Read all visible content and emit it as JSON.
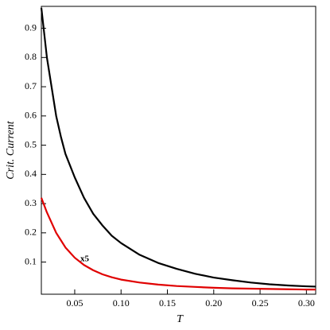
{
  "chart_data": {
    "type": "line",
    "x_label": "T",
    "y_label": "Crit. Current",
    "annotation": "x5",
    "x": [
      0.014,
      0.02,
      0.025,
      0.03,
      0.035,
      0.04,
      0.05,
      0.06,
      0.07,
      0.08,
      0.09,
      0.1,
      0.12,
      0.14,
      0.16,
      0.18,
      0.2,
      0.22,
      0.24,
      0.26,
      0.28,
      0.3,
      0.31
    ],
    "series": [
      {
        "color": "#000000",
        "values": [
          0.97,
          0.8,
          0.7,
          0.6,
          0.53,
          0.47,
          0.39,
          0.32,
          0.265,
          0.225,
          0.19,
          0.165,
          0.125,
          0.097,
          0.077,
          0.06,
          0.047,
          0.038,
          0.03,
          0.024,
          0.02,
          0.017,
          0.016
        ]
      },
      {
        "color": "#e00000",
        "values": [
          0.32,
          0.27,
          0.235,
          0.2,
          0.175,
          0.15,
          0.115,
          0.09,
          0.072,
          0.058,
          0.048,
          0.04,
          0.03,
          0.023,
          0.018,
          0.015,
          0.012,
          0.01,
          0.009,
          0.008,
          0.007,
          0.006,
          0.006
        ]
      }
    ],
    "xlim": [
      0.014,
      0.31
    ],
    "ylim": [
      -0.01,
      0.975
    ],
    "xticks": [
      0.05,
      {
        "value": 0.1,
        "label": "0.10"
      },
      0.15,
      {
        "value": 0.2,
        "label": "0.20"
      },
      0.25,
      {
        "value": 0.3,
        "label": "0.30"
      }
    ],
    "yticks": [
      0.1,
      0.2,
      0.3,
      0.4,
      0.5,
      0.6,
      0.7,
      0.8,
      0.9
    ]
  }
}
